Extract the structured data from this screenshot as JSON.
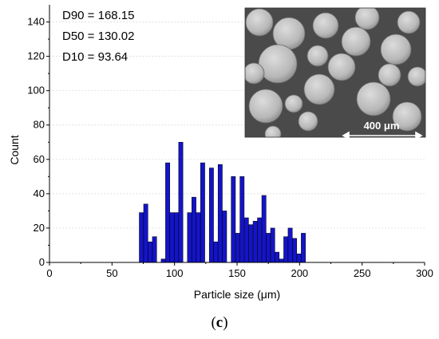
{
  "chart_data": {
    "type": "bar",
    "xlabel": "Particle size (μm)",
    "ylabel": "Count",
    "xlim": [
      0,
      300
    ],
    "ylim": [
      0,
      150
    ],
    "xticks": [
      0,
      50,
      100,
      150,
      200,
      250,
      300
    ],
    "yticks": [
      0,
      20,
      40,
      60,
      80,
      100,
      120,
      140
    ],
    "grid": true,
    "bar_color": "#1414c8",
    "bar_width": 3.4,
    "x": [
      73.5,
      77,
      80.5,
      84,
      87.5,
      91,
      94.5,
      98,
      101.5,
      105,
      108.5,
      112,
      115.5,
      119,
      122.5,
      126,
      129.5,
      133,
      136.5,
      140,
      143.5,
      147,
      150.5,
      154,
      157.5,
      161,
      164.5,
      168,
      171.5,
      175,
      178.5,
      182,
      185.5,
      189,
      192.5,
      196,
      199.5,
      203
    ],
    "values": [
      29,
      34,
      12,
      15,
      0,
      2,
      58,
      29,
      29,
      70,
      0,
      29,
      38,
      29,
      58,
      0,
      55,
      12,
      57,
      30,
      0,
      50,
      17,
      50,
      26,
      22,
      24,
      26,
      39,
      17,
      20,
      6,
      2,
      15,
      20,
      14,
      5,
      17
    ]
  },
  "stats": {
    "d90": "D90 = 168.15",
    "d50": "D50 = 130.02",
    "d10": "D10 = 93.64"
  },
  "inset": {
    "scale_label": "400 μm",
    "bg_color": "#4a4a4a",
    "particle_color": "#c4c4c4"
  },
  "panel_label": {
    "open": "(",
    "letter": "c",
    "close": ")"
  }
}
